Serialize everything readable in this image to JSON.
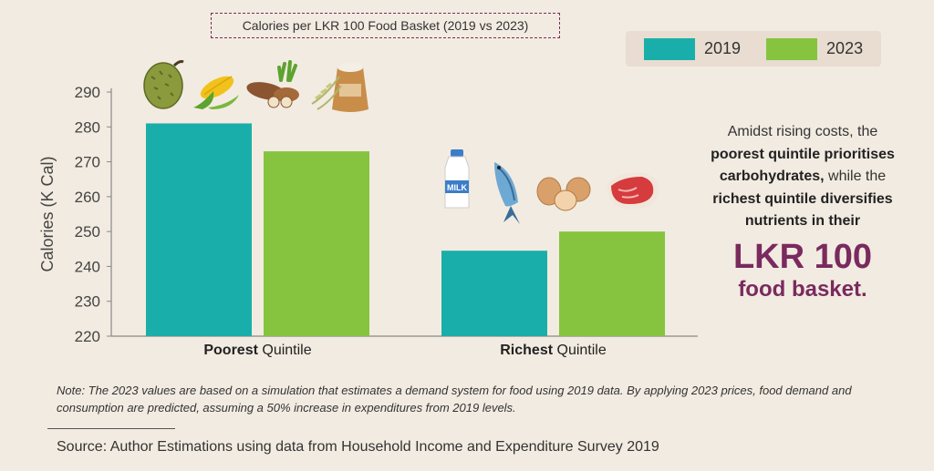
{
  "chart_data": {
    "type": "bar",
    "title": "Calories per LKR 100 Food Basket (2019 vs 2023)",
    "ylabel": "Calories (K Cal)",
    "xlabel": "",
    "ylim": [
      220,
      290
    ],
    "yticks": [
      220,
      230,
      240,
      250,
      260,
      270,
      280,
      290
    ],
    "categories": [
      {
        "bold": "Poorest",
        "rest": " Quintile"
      },
      {
        "bold": "Richest",
        "rest": " Quintile"
      }
    ],
    "series": [
      {
        "name": "2019",
        "color": "#1aaeaa",
        "values": [
          281,
          244.5
        ]
      },
      {
        "name": "2023",
        "color": "#86c440",
        "values": [
          273,
          250
        ]
      }
    ],
    "grid": false,
    "legend_position": "top-right"
  },
  "side_note": {
    "line1": "Amidst rising costs, the",
    "line2": "poorest quintile prioritises",
    "line3": "carbohydrates,",
    "line3b": " while the",
    "line4": "richest quintile diversifies",
    "line5": "nutrients in their",
    "big1": "LKR 100",
    "big2": "food basket.",
    "accent": "#7a2a5e"
  },
  "note": "Note: The 2023 values are based on a simulation that estimates a demand system for food using 2019 data. By applying 2023 prices, food demand and consumption are predicted, assuming a 50% increase in expenditures from 2019 levels.",
  "source": "Source: Author Estimations using data from Household Income and Expenditure Survey 2019",
  "icons": {
    "poor": [
      "jackfruit-icon",
      "corn-icon",
      "cassava-icon",
      "rice-sack-icon"
    ],
    "rich": [
      "milk-bottle-icon",
      "fish-icon",
      "eggs-icon",
      "meat-icon"
    ],
    "milk_label": "MILK"
  }
}
